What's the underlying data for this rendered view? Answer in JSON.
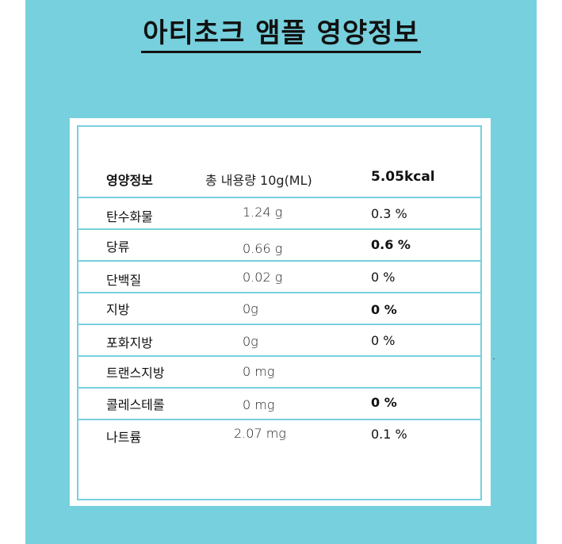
{
  "title": "아티초크 앰플 영양정보",
  "header": {
    "label": "영양정보",
    "amount": "총 내용량 10g(ML)",
    "calories": "5.05kcal"
  },
  "rows": [
    {
      "name": "탄수화물",
      "amount": "1.24 g",
      "percent": "0.3 %"
    },
    {
      "name": "당류",
      "amount": "0.66 g",
      "percent": "0.6 %"
    },
    {
      "name": "단백질",
      "amount": "0.02 g",
      "percent": "0 %"
    },
    {
      "name": "지방",
      "amount": "0g",
      "percent": "0 %"
    },
    {
      "name": "포화지방",
      "amount": "0g",
      "percent": "0 %"
    },
    {
      "name": "트랜스지방",
      "amount": "0 mg",
      "percent": ""
    },
    {
      "name": "콜레스테롤",
      "amount": "0 mg",
      "percent": "0 %"
    },
    {
      "name": "나트륨",
      "amount": "2.07 mg",
      "percent": "0.1 %"
    }
  ],
  "colors": {
    "background": "#77d0dd",
    "border": "#77d0dd",
    "text": "#111111"
  }
}
